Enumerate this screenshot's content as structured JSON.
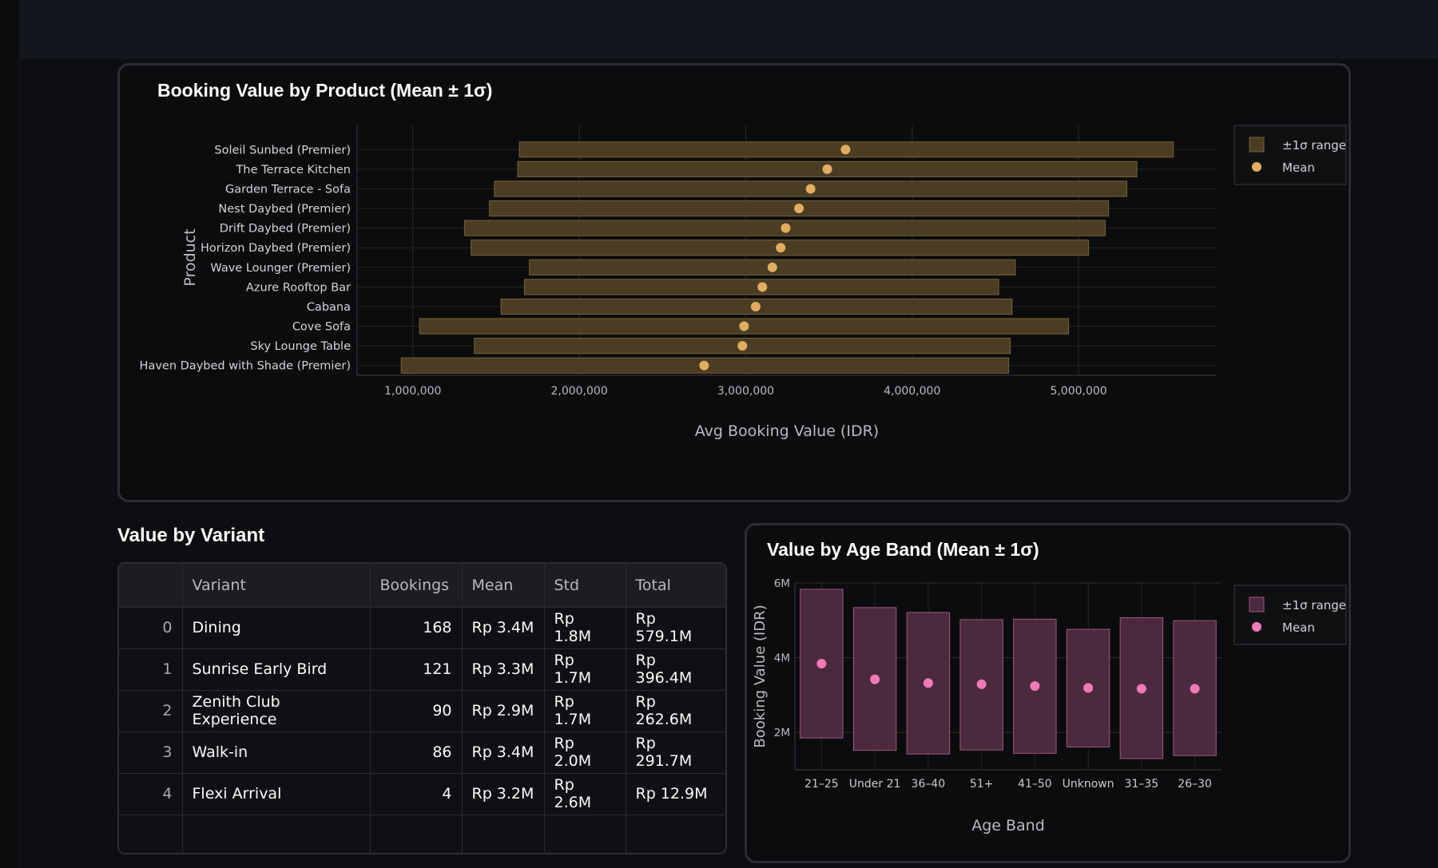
{
  "product_chart": {
    "title": "Booking Value by Product (Mean ± 1σ)",
    "legend": [
      "±1σ range",
      "Mean"
    ]
  },
  "variant_table": {
    "heading": "Value by Variant",
    "columns": [
      "",
      "Variant",
      "Bookings",
      "Mean",
      "Std",
      "Total"
    ],
    "rows": [
      [
        "0",
        "Dining",
        "168",
        "Rp 3.4M",
        "Rp 1.8M",
        "Rp 579.1M"
      ],
      [
        "1",
        "Sunrise Early Bird",
        "121",
        "Rp 3.3M",
        "Rp 1.7M",
        "Rp 396.4M"
      ],
      [
        "2",
        "Zenith Club Experience",
        "90",
        "Rp 2.9M",
        "Rp 1.7M",
        "Rp 262.6M"
      ],
      [
        "3",
        "Walk-in",
        "86",
        "Rp 3.4M",
        "Rp 2.0M",
        "Rp 291.7M"
      ],
      [
        "4",
        "Flexi Arrival",
        "4",
        "Rp 3.2M",
        "Rp 2.6M",
        "Rp 12.9M"
      ]
    ]
  },
  "age_chart": {
    "title": "Value by Age Band (Mean ± 1σ)",
    "legend": [
      "±1σ range",
      "Mean"
    ]
  },
  "colors": {
    "product_bar_fill": "#4a3d24",
    "product_bar_stroke": "#7a6237",
    "product_mean": "#e2ad5f",
    "age_bar_fill": "#4a2a3c",
    "age_bar_stroke": "#a0587f",
    "age_mean": "#f07ab8"
  },
  "chart_data": [
    {
      "type": "bar",
      "orientation": "horizontal",
      "title": "Booking Value by Product (Mean ± 1σ)",
      "xlabel": "Avg Booking Value (IDR)",
      "ylabel": "Product",
      "xlim": [
        665000,
        5830000
      ],
      "xticks": [
        1000000,
        2000000,
        3000000,
        4000000,
        5000000
      ],
      "xtick_labels": [
        "1,000,000",
        "2,000,000",
        "3,000,000",
        "4,000,000",
        "5,000,000"
      ],
      "grid": true,
      "legend_position": "top-right",
      "categories": [
        "Soleil Sunbed (Premier)",
        "The Terrace Kitchen",
        "Garden Terrace - Sofa",
        "Nest Daybed (Premier)",
        "Drift Daybed (Premier)",
        "Horizon Daybed (Premier)",
        "Wave Lounger (Premier)",
        "Azure Rooftop Bar",
        "Cabana",
        "Cove Sofa",
        "Sky Lounge Table",
        "Haven Daybed with Shade (Premier)"
      ],
      "series": [
        {
          "name": "±1σ range",
          "low": [
            1640000,
            1630000,
            1490000,
            1460000,
            1310000,
            1350000,
            1700000,
            1670000,
            1530000,
            1040000,
            1370000,
            930000
          ],
          "high": [
            5570000,
            5350000,
            5290000,
            5180000,
            5160000,
            5060000,
            4620000,
            4520000,
            4600000,
            4940000,
            4590000,
            4580000
          ]
        },
        {
          "name": "Mean",
          "values": [
            3600000,
            3490000,
            3390000,
            3320000,
            3240000,
            3210000,
            3160000,
            3100000,
            3060000,
            2990000,
            2980000,
            2750000
          ]
        }
      ]
    },
    {
      "type": "bar",
      "title": "Value by Age Band (Mean ± 1σ)",
      "xlabel": "Age Band",
      "ylabel": "Booking Value (IDR)",
      "ylim": [
        1000000,
        6000000
      ],
      "yticks": [
        2000000,
        4000000,
        6000000
      ],
      "ytick_labels": [
        "2M",
        "4M",
        "6M"
      ],
      "grid": true,
      "legend_position": "top-right",
      "categories": [
        "21–25",
        "Under 21",
        "36–40",
        "51+",
        "41–50",
        "Unknown",
        "31–35",
        "26–30"
      ],
      "series": [
        {
          "name": "±1σ range",
          "low": [
            1850000,
            1520000,
            1420000,
            1530000,
            1440000,
            1610000,
            1300000,
            1380000
          ],
          "high": [
            5830000,
            5340000,
            5210000,
            5020000,
            5030000,
            4760000,
            5070000,
            4990000
          ]
        },
        {
          "name": "Mean",
          "values": [
            3840000,
            3420000,
            3320000,
            3290000,
            3240000,
            3190000,
            3170000,
            3170000
          ]
        }
      ]
    }
  ]
}
